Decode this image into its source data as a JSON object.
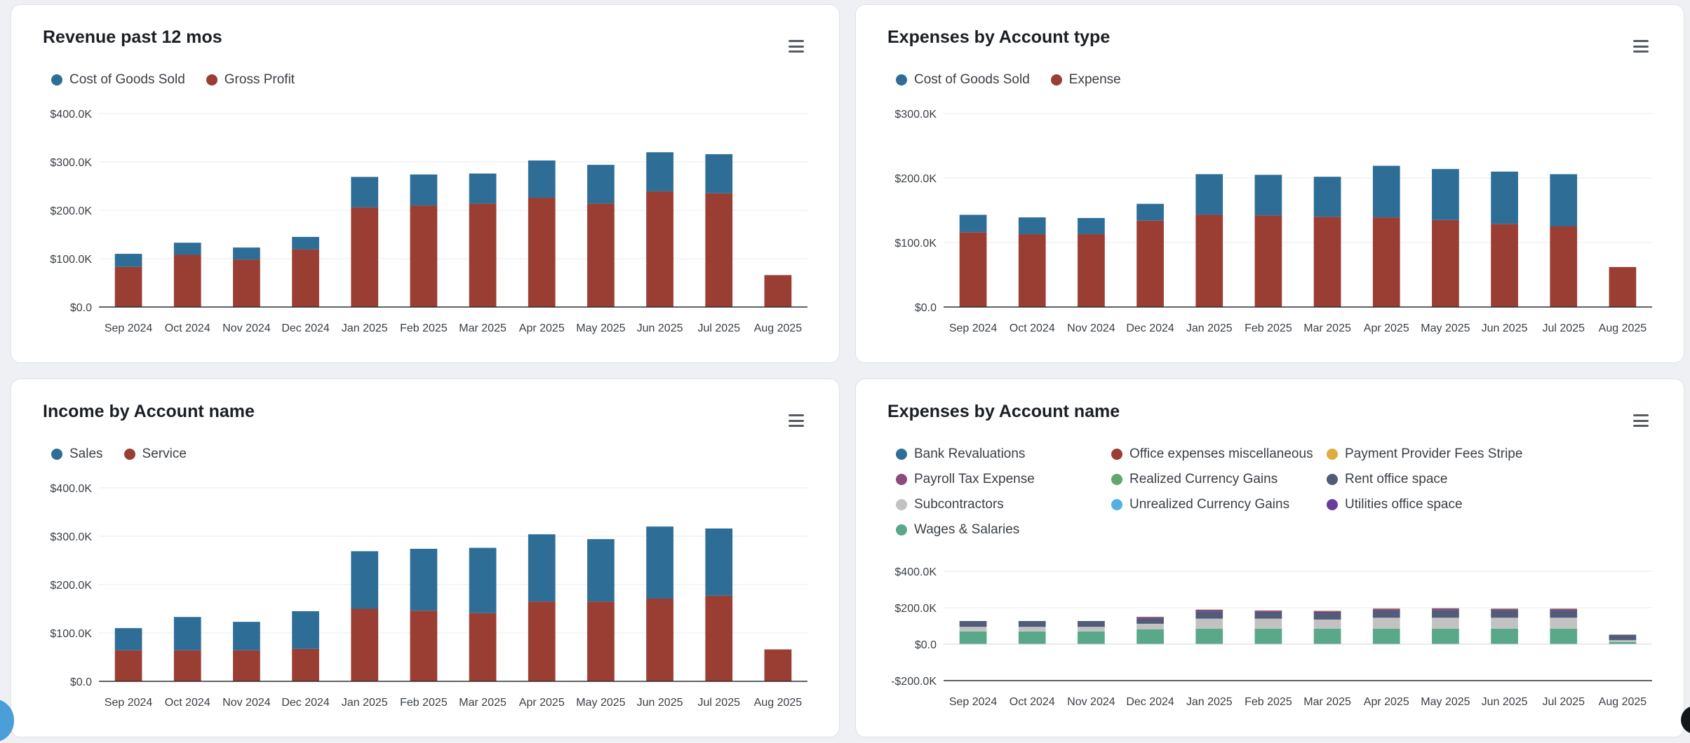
{
  "colors": {
    "blue": "#2e6e96",
    "red": "#9a3d33",
    "yellow": "#e0ab3f",
    "payroll": "#8a4d7a",
    "green": "#5fa86a",
    "slate": "#525b78",
    "gray": "#c2c2c2",
    "lightblue": "#52b0e5",
    "purple": "#6a3d9a",
    "teal": "#5aa88a"
  },
  "icons": {
    "menu": "hamburger-menu-icon"
  },
  "chart_data": [
    {
      "type": "bar",
      "stacked": true,
      "title": "Revenue past 12 mos",
      "categories": [
        "Sep 2024",
        "Oct 2024",
        "Nov 2024",
        "Dec 2024",
        "Jan 2025",
        "Feb 2025",
        "Mar 2025",
        "Apr 2025",
        "May 2025",
        "Jun 2025",
        "Jul 2025",
        "Aug 2025"
      ],
      "series": [
        {
          "name": "Gross Profit",
          "color": "#9a3d33",
          "values": [
            83,
            108,
            98,
            119,
            206,
            210,
            214,
            226,
            214,
            239,
            235,
            66
          ]
        },
        {
          "name": "Cost of Goods Sold",
          "color": "#2e6e96",
          "values": [
            27,
            25,
            25,
            26,
            63,
            64,
            62,
            77,
            80,
            81,
            81,
            0
          ]
        }
      ],
      "legend": [
        {
          "name": "Cost of Goods Sold",
          "color": "#2e6e96"
        },
        {
          "name": "Gross Profit",
          "color": "#9a3d33"
        }
      ],
      "yticks": [
        0,
        100,
        200,
        300,
        400
      ],
      "ytick_labels": [
        "$0.0",
        "$100.0K",
        "$200.0K",
        "$300.0K",
        "$400.0K"
      ],
      "ylim": [
        0,
        400
      ],
      "value_units": "thousands of dollars",
      "grid": true
    },
    {
      "type": "bar",
      "stacked": true,
      "title": "Expenses by Account type",
      "categories": [
        "Sep 2024",
        "Oct 2024",
        "Nov 2024",
        "Dec 2024",
        "Jan 2025",
        "Feb 2025",
        "Mar 2025",
        "Apr 2025",
        "May 2025",
        "Jun 2025",
        "Jul 2025",
        "Aug 2025"
      ],
      "series": [
        {
          "name": "Expense",
          "color": "#9a3d33",
          "values": [
            116,
            113,
            113,
            134,
            143,
            142,
            140,
            139,
            135,
            129,
            125,
            62
          ]
        },
        {
          "name": "Cost of Goods Sold",
          "color": "#2e6e96",
          "values": [
            27,
            26,
            25,
            26,
            63,
            63,
            62,
            80,
            79,
            81,
            81,
            0
          ]
        }
      ],
      "legend": [
        {
          "name": "Cost of Goods Sold",
          "color": "#2e6e96"
        },
        {
          "name": "Expense",
          "color": "#9a3d33"
        }
      ],
      "yticks": [
        0,
        100,
        200,
        300
      ],
      "ytick_labels": [
        "$0.0",
        "$100.0K",
        "$200.0K",
        "$300.0K"
      ],
      "ylim": [
        0,
        300
      ],
      "value_units": "thousands of dollars",
      "grid": true
    },
    {
      "type": "bar",
      "stacked": true,
      "title": "Income by Account name",
      "categories": [
        "Sep 2024",
        "Oct 2024",
        "Nov 2024",
        "Dec 2024",
        "Jan 2025",
        "Feb 2025",
        "Mar 2025",
        "Apr 2025",
        "May 2025",
        "Jun 2025",
        "Jul 2025",
        "Aug 2025"
      ],
      "series": [
        {
          "name": "Service",
          "color": "#9a3d33",
          "values": [
            64,
            64,
            64,
            67,
            150,
            146,
            141,
            165,
            165,
            171,
            177,
            66
          ]
        },
        {
          "name": "Sales",
          "color": "#2e6e96",
          "values": [
            46,
            69,
            59,
            78,
            119,
            128,
            135,
            139,
            129,
            149,
            139,
            0
          ]
        }
      ],
      "legend": [
        {
          "name": "Sales",
          "color": "#2e6e96"
        },
        {
          "name": "Service",
          "color": "#9a3d33"
        }
      ],
      "yticks": [
        0,
        100,
        200,
        300,
        400
      ],
      "ytick_labels": [
        "$0.0",
        "$100.0K",
        "$200.0K",
        "$300.0K",
        "$400.0K"
      ],
      "ylim": [
        0,
        400
      ],
      "value_units": "thousands of dollars",
      "grid": true
    },
    {
      "type": "bar",
      "stacked": true,
      "title": "Expenses by Account name",
      "categories": [
        "Sep 2024",
        "Oct 2024",
        "Nov 2024",
        "Dec 2024",
        "Jan 2025",
        "Feb 2025",
        "Mar 2025",
        "Apr 2025",
        "May 2025",
        "Jun 2025",
        "Jul 2025",
        "Aug 2025"
      ],
      "series": [
        {
          "name": "Wages & Salaries",
          "color": "#5aa88a",
          "values": [
            70,
            70,
            70,
            82,
            85,
            85,
            85,
            85,
            85,
            85,
            85,
            12
          ]
        },
        {
          "name": "Subcontractors",
          "color": "#c2c2c2",
          "values": [
            25,
            25,
            25,
            30,
            55,
            55,
            50,
            60,
            60,
            60,
            60,
            10
          ]
        },
        {
          "name": "Rent office space",
          "color": "#525b78",
          "values": [
            32,
            32,
            32,
            30,
            40,
            35,
            38,
            40,
            42,
            40,
            40,
            30
          ]
        },
        {
          "name": "Utilities office space",
          "color": "#6a3d9a",
          "values": [
            0,
            0,
            0,
            4,
            5,
            5,
            5,
            5,
            5,
            5,
            5,
            0
          ]
        },
        {
          "name": "Payroll Tax Expense",
          "color": "#8a4d7a",
          "values": [
            0,
            0,
            0,
            3,
            4,
            4,
            4,
            4,
            4,
            4,
            4,
            0
          ]
        },
        {
          "name": "Payment Provider Fees Stripe",
          "color": "#e0ab3f",
          "values": [
            0,
            0,
            0,
            2,
            2,
            2,
            2,
            3,
            2,
            2,
            2,
            0
          ]
        }
      ],
      "legend": [
        {
          "name": "Bank Revaluations",
          "color": "#2e6e96"
        },
        {
          "name": "Office expenses miscellaneous",
          "color": "#9a3d33"
        },
        {
          "name": "Payment Provider Fees Stripe",
          "color": "#e0ab3f"
        },
        {
          "name": "Payroll Tax Expense",
          "color": "#8a4d7a"
        },
        {
          "name": "Realized Currency Gains",
          "color": "#5fa86a"
        },
        {
          "name": "Rent office space",
          "color": "#525b78"
        },
        {
          "name": "Subcontractors",
          "color": "#c2c2c2"
        },
        {
          "name": "Unrealized Currency Gains",
          "color": "#52b0e5"
        },
        {
          "name": "Utilities office space",
          "color": "#6a3d9a"
        },
        {
          "name": "Wages & Salaries",
          "color": "#5aa88a"
        }
      ],
      "yticks": [
        -200,
        0,
        200,
        400
      ],
      "ytick_labels": [
        "-$200.0K",
        "$0.0",
        "$200.0K",
        "$400.0K"
      ],
      "ylim": [
        -200,
        400
      ],
      "value_units": "thousands of dollars",
      "grid": true
    }
  ]
}
